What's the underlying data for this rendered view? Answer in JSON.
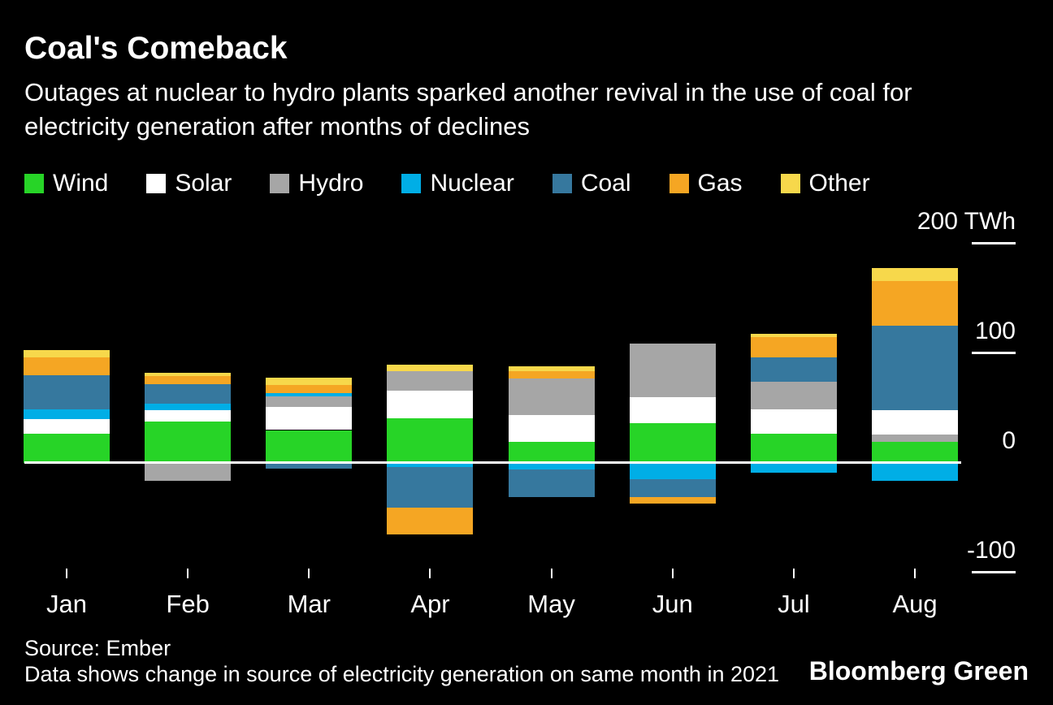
{
  "header": {
    "title": "Coal's Comeback",
    "subtitle": "Outages at nuclear to hydro plants sparked another revival in the use of coal for electricity generation after months of declines"
  },
  "legend": [
    {
      "label": "Wind",
      "color": "#27d427"
    },
    {
      "label": "Solar",
      "color": "#ffffff"
    },
    {
      "label": "Hydro",
      "color": "#a6a6a6"
    },
    {
      "label": "Nuclear",
      "color": "#00aee6"
    },
    {
      "label": "Coal",
      "color": "#36789e"
    },
    {
      "label": "Gas",
      "color": "#f5a623"
    },
    {
      "label": "Other",
      "color": "#f7d84b"
    }
  ],
  "axis": {
    "unit": "TWh",
    "ticks": [
      {
        "label": "200 TWh",
        "value": 200
      },
      {
        "label": "100",
        "value": 100
      },
      {
        "label": "0",
        "value": 0
      },
      {
        "label": "-100",
        "value": -100
      }
    ]
  },
  "chart_data": {
    "type": "bar",
    "stacked": true,
    "unit": "TWh",
    "title": "Coal's Comeback",
    "ylim": [
      -100,
      210
    ],
    "grid": false,
    "legend_position": "top",
    "categories": [
      "Jan",
      "Feb",
      "Mar",
      "Apr",
      "May",
      "Jun",
      "Jul",
      "Aug"
    ],
    "months": [
      {
        "label": "Jan",
        "segments": [
          {
            "source": "Wind",
            "value": 27
          },
          {
            "source": "Solar",
            "value": 13
          },
          {
            "source": "Nuclear",
            "value": 9
          },
          {
            "source": "Coal",
            "value": 31
          },
          {
            "source": "Gas",
            "value": 16
          },
          {
            "source": "Other",
            "value": 7
          }
        ]
      },
      {
        "label": "Feb",
        "segments": [
          {
            "source": "Wind",
            "value": 38
          },
          {
            "source": "Solar",
            "value": 10
          },
          {
            "source": "Nuclear",
            "value": 6
          },
          {
            "source": "Coal",
            "value": 18
          },
          {
            "source": "Gas",
            "value": 7
          },
          {
            "source": "Other",
            "value": 3
          },
          {
            "source": "Hydro",
            "value": -16
          }
        ]
      },
      {
        "label": "Mar",
        "segments": [
          {
            "source": "Wind",
            "value": 30
          },
          {
            "source": "Solar",
            "value": 21
          },
          {
            "source": "Hydro",
            "value": 10
          },
          {
            "source": "Nuclear",
            "value": 3
          },
          {
            "source": "Gas",
            "value": 7
          },
          {
            "source": "Other",
            "value": 7
          },
          {
            "source": "Coal",
            "value": -5
          }
        ]
      },
      {
        "label": "Apr",
        "segments": [
          {
            "source": "Wind",
            "value": 41
          },
          {
            "source": "Solar",
            "value": 25
          },
          {
            "source": "Hydro",
            "value": 18
          },
          {
            "source": "Other",
            "value": 6
          },
          {
            "source": "Nuclear",
            "value": -4
          },
          {
            "source": "Coal",
            "value": -37
          },
          {
            "source": "Gas",
            "value": -24
          }
        ]
      },
      {
        "label": "May",
        "segments": [
          {
            "source": "Wind",
            "value": 19
          },
          {
            "source": "Solar",
            "value": 25
          },
          {
            "source": "Hydro",
            "value": 33
          },
          {
            "source": "Gas",
            "value": 7
          },
          {
            "source": "Other",
            "value": 4
          },
          {
            "source": "Nuclear",
            "value": -6
          },
          {
            "source": "Coal",
            "value": -25
          }
        ]
      },
      {
        "label": "Jun",
        "segments": [
          {
            "source": "Wind",
            "value": 36
          },
          {
            "source": "Solar",
            "value": 24
          },
          {
            "source": "Hydro",
            "value": 49
          },
          {
            "source": "Nuclear",
            "value": -15
          },
          {
            "source": "Coal",
            "value": -16
          },
          {
            "source": "Gas",
            "value": -6
          }
        ]
      },
      {
        "label": "Jul",
        "segments": [
          {
            "source": "Wind",
            "value": 27
          },
          {
            "source": "Solar",
            "value": 22
          },
          {
            "source": "Hydro",
            "value": 25
          },
          {
            "source": "Coal",
            "value": 22
          },
          {
            "source": "Gas",
            "value": 19
          },
          {
            "source": "Other",
            "value": 3
          },
          {
            "source": "Nuclear",
            "value": -9
          }
        ]
      },
      {
        "label": "Aug",
        "segments": [
          {
            "source": "Wind",
            "value": 19
          },
          {
            "source": "Hydro",
            "value": 7
          },
          {
            "source": "Solar",
            "value": 22
          },
          {
            "source": "Coal",
            "value": 77
          },
          {
            "source": "Gas",
            "value": 41
          },
          {
            "source": "Other",
            "value": 12
          },
          {
            "source": "Nuclear",
            "value": -16
          }
        ]
      }
    ]
  },
  "footer": {
    "source": "Source: Ember",
    "note": "Data shows change in source of electricity generation on same month in 2021",
    "brand": "Bloomberg Green"
  }
}
